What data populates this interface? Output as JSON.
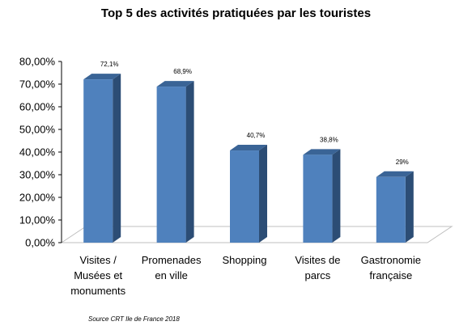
{
  "chart_data": {
    "type": "bar",
    "title": "Top 5 des activités pratiquées par les touristes",
    "categories": [
      [
        "Visites /",
        "Musées et",
        "monuments"
      ],
      [
        "Promenades",
        "en ville"
      ],
      [
        "Shopping"
      ],
      [
        "Visites de",
        "parcs"
      ],
      [
        "Gastronomie",
        "française"
      ]
    ],
    "values": [
      72.1,
      68.9,
      40.7,
      38.8,
      29
    ],
    "data_labels": [
      "72,1%",
      "68,9%",
      "40,7%",
      "38,8%",
      "29%"
    ],
    "y_ticks": [
      "0,00%",
      "10,00%",
      "20,00%",
      "30,00%",
      "40,00%",
      "50,00%",
      "60,00%",
      "70,00%",
      "80,00%"
    ],
    "ylim": [
      0,
      80
    ],
    "bar_color": "#4F81BD",
    "grid": false,
    "legend": "none",
    "source": "Source CRT Ile de France 2018"
  }
}
